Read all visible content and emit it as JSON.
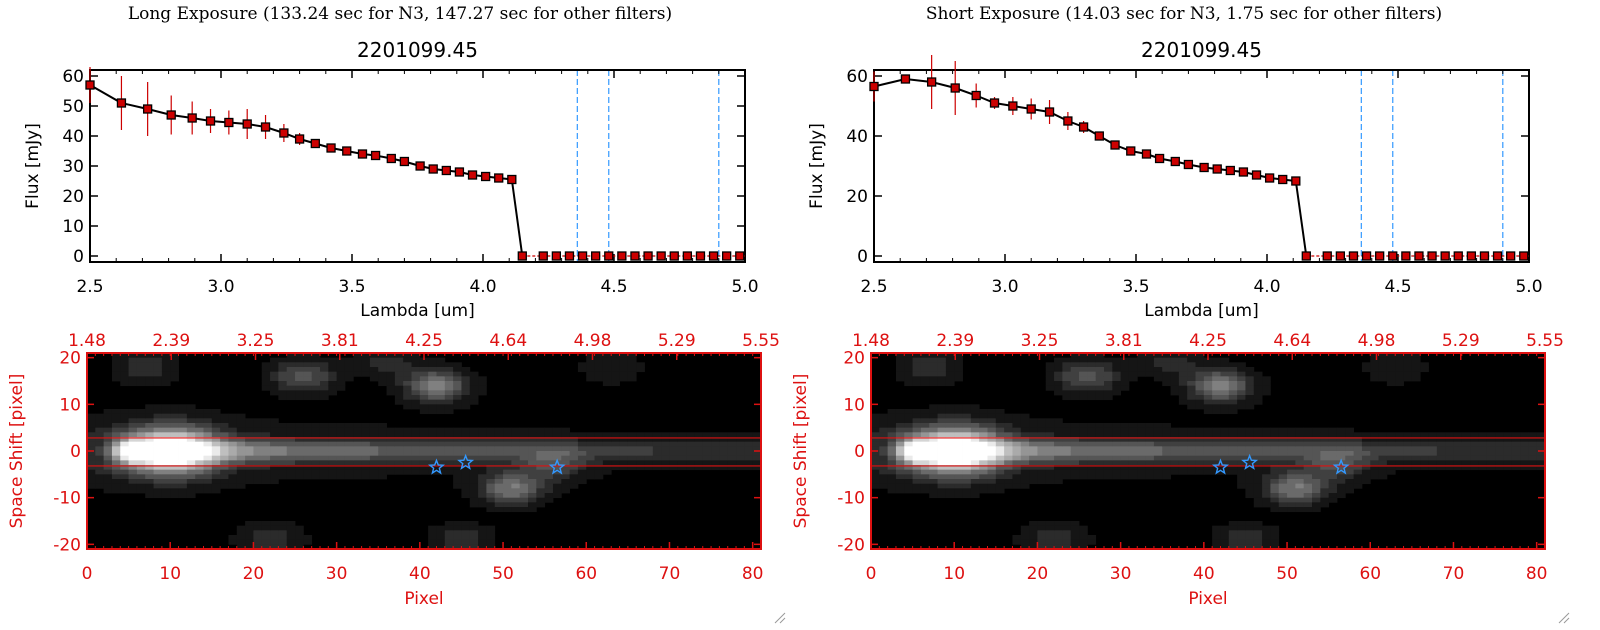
{
  "panels": [
    {
      "title": "Long Exposure (133.24 sec for N3, 147.27 sec for other filters)",
      "chart_data": [
        {
          "type": "line",
          "title": "2201099.45",
          "xlabel": "Lambda [um]",
          "ylabel": "Flux [mJy]",
          "xlim": [
            2.5,
            5.0
          ],
          "ylim": [
            -2,
            62
          ],
          "xticks": [
            "2.5",
            "3.0",
            "3.5",
            "4.0",
            "4.5",
            "5.0"
          ],
          "yticks": [
            "0",
            "10",
            "20",
            "30",
            "40",
            "50",
            "60"
          ],
          "vlines_x": [
            4.36,
            4.48,
            4.9
          ],
          "series": [
            {
              "x": [
                2.5,
                2.62,
                2.72,
                2.81,
                2.89,
                2.96,
                3.03,
                3.1,
                3.17,
                3.24,
                3.3,
                3.36,
                3.42,
                3.48,
                3.54,
                3.59,
                3.65,
                3.7,
                3.76,
                3.81,
                3.86,
                3.91,
                3.96,
                4.01,
                4.06,
                4.11,
                4.15
              ],
              "y": [
                57,
                51,
                49,
                47,
                46,
                45,
                44.5,
                44,
                43,
                41,
                39,
                37.5,
                36,
                35,
                34,
                33.5,
                32.5,
                31.5,
                30,
                29,
                28.5,
                28,
                27,
                26.5,
                26,
                25.5,
                0
              ],
              "yerr": [
                6,
                9,
                9,
                6.5,
                5.5,
                4,
                4,
                5,
                4,
                3,
                2,
                1,
                0.5,
                0.5,
                0.5,
                0.5,
                0.5,
                0.5,
                0.5,
                0.5,
                0.5,
                0.5,
                0.5,
                0.5,
                0.5,
                0.5,
                0.5
              ]
            }
          ],
          "zero_points_x": [
            4.23,
            4.28,
            4.33,
            4.38,
            4.43,
            4.48,
            4.53,
            4.58,
            4.63,
            4.68,
            4.73,
            4.78,
            4.83,
            4.88,
            4.93,
            4.98
          ]
        },
        {
          "type": "heatmap",
          "xlabel": "Pixel",
          "ylabel": "Space Shift [pixel]",
          "xlim": [
            0,
            81
          ],
          "ylim": [
            -21,
            21
          ],
          "xticks": [
            "0",
            "10",
            "20",
            "30",
            "40",
            "50",
            "60",
            "70",
            "80"
          ],
          "yticks": [
            "-20",
            "-10",
            "0",
            "10",
            "20"
          ],
          "top_ticks": [
            "1.48",
            "2.39",
            "3.25",
            "3.81",
            "4.25",
            "4.64",
            "4.98",
            "5.29",
            "5.55"
          ],
          "aperture_y": [
            2.8,
            -3.2
          ],
          "stars_x": [
            42,
            45.5,
            56.5
          ],
          "stars_y": [
            -3.5,
            -2.5,
            -3.5
          ],
          "blobs": [
            {
              "x": 10,
              "y": 0,
              "amp": 1.0
            },
            {
              "x": 42,
              "y": 14,
              "amp": 0.5
            },
            {
              "x": 26,
              "y": 16,
              "amp": 0.35
            },
            {
              "x": 51,
              "y": -8,
              "amp": 0.45
            },
            {
              "x": 56,
              "y": -3,
              "amp": 0.25
            },
            {
              "x": 7,
              "y": 18,
              "amp": 0.18
            },
            {
              "x": 22,
              "y": -19,
              "amp": 0.2
            },
            {
              "x": 45,
              "y": -19,
              "amp": 0.18
            },
            {
              "x": 63,
              "y": 18,
              "amp": 0.12
            },
            {
              "x": 36,
              "y": 19,
              "amp": 0.15
            }
          ]
        }
      ]
    },
    {
      "title": "Short Exposure (14.03 sec for N3, 1.75 sec for other filters)",
      "chart_data": [
        {
          "type": "line",
          "title": "2201099.45",
          "xlabel": "Lambda [um]",
          "ylabel": "Flux [mJy]",
          "xlim": [
            2.5,
            5.0
          ],
          "ylim": [
            -2,
            62
          ],
          "xticks": [
            "2.5",
            "3.0",
            "3.5",
            "4.0",
            "4.5",
            "5.0"
          ],
          "yticks": [
            "0",
            "20",
            "40",
            "60"
          ],
          "vlines_x": [
            4.36,
            4.48,
            4.9
          ],
          "series": [
            {
              "x": [
                2.5,
                2.62,
                2.72,
                2.81,
                2.89,
                2.96,
                3.03,
                3.1,
                3.17,
                3.24,
                3.3,
                3.36,
                3.42,
                3.48,
                3.54,
                3.59,
                3.65,
                3.7,
                3.76,
                3.81,
                3.86,
                3.91,
                3.96,
                4.01,
                4.06,
                4.11,
                4.15
              ],
              "y": [
                56.5,
                59,
                58,
                56,
                53.5,
                51,
                50,
                49,
                48,
                45,
                43,
                40,
                37,
                35,
                34,
                32.5,
                31.5,
                30.5,
                29.5,
                29,
                28.5,
                28,
                27,
                26,
                25.5,
                25,
                0
              ],
              "yerr": [
                5,
                1.5,
                9,
                9,
                4,
                2,
                3,
                3.5,
                4,
                3,
                2,
                1,
                0.5,
                0.5,
                0.5,
                0.5,
                0.5,
                0.5,
                0.5,
                0.5,
                0.5,
                0.5,
                0.5,
                0.5,
                0.5,
                0.5,
                0.5
              ]
            }
          ],
          "zero_points_x": [
            4.23,
            4.28,
            4.33,
            4.38,
            4.43,
            4.48,
            4.53,
            4.58,
            4.63,
            4.68,
            4.73,
            4.78,
            4.83,
            4.88,
            4.93,
            4.98
          ]
        },
        {
          "type": "heatmap",
          "xlabel": "Pixel",
          "ylabel": "Space Shift [pixel]",
          "xlim": [
            0,
            81
          ],
          "ylim": [
            -21,
            21
          ],
          "xticks": [
            "0",
            "10",
            "20",
            "30",
            "40",
            "50",
            "60",
            "70",
            "80"
          ],
          "yticks": [
            "-20",
            "-10",
            "0",
            "10",
            "20"
          ],
          "top_ticks": [
            "1.48",
            "2.39",
            "3.25",
            "3.81",
            "4.25",
            "4.64",
            "4.98",
            "5.29",
            "5.55"
          ],
          "aperture_y": [
            2.8,
            -3.2
          ],
          "stars_x": [
            42,
            45.5,
            56.5
          ],
          "stars_y": [
            -3.5,
            -2.5,
            -3.5
          ],
          "blobs": [
            {
              "x": 10,
              "y": 0,
              "amp": 1.0
            },
            {
              "x": 42,
              "y": 14,
              "amp": 0.5
            },
            {
              "x": 26,
              "y": 16,
              "amp": 0.35
            },
            {
              "x": 51,
              "y": -8,
              "amp": 0.45
            },
            {
              "x": 56,
              "y": -3,
              "amp": 0.25
            },
            {
              "x": 7,
              "y": 18,
              "amp": 0.18
            },
            {
              "x": 22,
              "y": -19,
              "amp": 0.2
            },
            {
              "x": 45,
              "y": -19,
              "amp": 0.18
            },
            {
              "x": 63,
              "y": 18,
              "amp": 0.12
            },
            {
              "x": 36,
              "y": 19,
              "amp": 0.15
            }
          ]
        }
      ]
    }
  ],
  "colors": {
    "axis_red": "#dd1111",
    "marker_red": "#cc0000",
    "vline_blue": "#3399ff",
    "star_blue": "#3399ff",
    "line_black": "#000000"
  }
}
